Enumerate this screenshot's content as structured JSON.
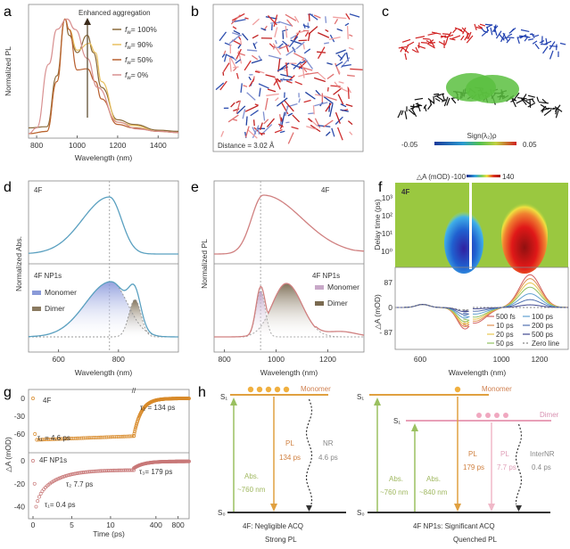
{
  "figure": {
    "panels": [
      "a",
      "b",
      "c",
      "d",
      "e",
      "f",
      "g",
      "h"
    ]
  },
  "chart_data": [
    {
      "id": "a",
      "type": "line",
      "title": "",
      "annotation": "Enhanced aggregation",
      "xlabel": "Wavelength (nm)",
      "ylabel": "Normalized PL",
      "xlim": [
        760,
        1500
      ],
      "xticks": [
        "800",
        "1000",
        "1200",
        "1400"
      ],
      "xtick_values": [
        800,
        1000,
        1200,
        1400
      ],
      "legend_placement": "top-right",
      "series": [
        {
          "name": "f_w = 100%",
          "label_prefix": "f",
          "label_sub": "w",
          "label_rest": "= 100%",
          "color": "#8a6a3a",
          "x": [
            760,
            850,
            900,
            940,
            960,
            1000,
            1050,
            1080,
            1120,
            1200,
            1280,
            1400,
            1500
          ],
          "y": [
            0.05,
            0.06,
            0.5,
            0.99,
            0.85,
            0.7,
            0.85,
            0.7,
            0.4,
            0.12,
            0.08,
            0.03,
            0.02
          ]
        },
        {
          "name": "f_w = 90%",
          "label_prefix": "f",
          "label_sub": "w",
          "label_rest": "= 90%",
          "color": "#e8c060",
          "x": [
            760,
            850,
            900,
            940,
            960,
            1000,
            1060,
            1090,
            1120,
            1200,
            1280,
            1400,
            1500
          ],
          "y": [
            0.0,
            0.02,
            0.45,
            0.99,
            0.9,
            0.72,
            0.78,
            0.7,
            0.45,
            0.1,
            0.07,
            0.02,
            0.01
          ]
        },
        {
          "name": "f_w = 50%",
          "label_prefix": "f",
          "label_sub": "w",
          "label_rest": "= 50%",
          "color": "#b86030",
          "x": [
            760,
            850,
            900,
            940,
            960,
            1000,
            1050,
            1090,
            1120,
            1200,
            1280,
            1400,
            1500
          ],
          "y": [
            0.0,
            0.02,
            0.45,
            0.99,
            0.9,
            0.55,
            0.56,
            0.45,
            0.3,
            0.08,
            0.05,
            0.02,
            0.01
          ]
        },
        {
          "name": "f_w = 0%",
          "label_prefix": "f",
          "label_sub": "w",
          "label_rest": "= 0%",
          "color": "#d89090",
          "x": [
            760,
            800,
            860,
            900,
            950,
            990,
            1050,
            1100,
            1200,
            1300,
            1400,
            1500
          ],
          "y": [
            0.0,
            0.05,
            0.6,
            0.9,
            0.99,
            0.9,
            0.65,
            0.4,
            0.1,
            0.04,
            0.02,
            0.01
          ]
        }
      ]
    },
    {
      "id": "d",
      "type": "line",
      "xlabel": "Wavelength (nm)",
      "ylabel": "Normalized Abs.",
      "xlim": [
        500,
        1000
      ],
      "xticks": [
        "600",
        "800"
      ],
      "xtick_values": [
        600,
        800
      ],
      "marker_line_x": 770,
      "top": {
        "label": "4F",
        "color": "#5aa0c0",
        "peak_x": 770
      },
      "bottom": {
        "label": "4F NP1s",
        "legend": [
          {
            "name": "Monomer",
            "color": "#8a9ad8"
          },
          {
            "name": "Dimer",
            "color": "#8a7a60"
          }
        ],
        "monomer_peak_x": 775,
        "dimer_peak_x": 855,
        "total_peak_x": 850
      }
    },
    {
      "id": "e",
      "type": "line",
      "xlabel": "Wavelength (nm)",
      "ylabel": "Normalized PL",
      "xlim": [
        760,
        1340
      ],
      "xticks": [
        "800",
        "1000",
        "1200"
      ],
      "xtick_values": [
        800,
        1000,
        1200
      ],
      "marker_line_x": 940,
      "top": {
        "label": "4F",
        "color": "#d08080",
        "peak_x": 950
      },
      "bottom": {
        "label": "4F NP1s",
        "legend": [
          {
            "name": "Monomer",
            "color": "#c8a8c8"
          },
          {
            "name": "Dimer",
            "color": "#7a6a50"
          }
        ],
        "monomer_peak_x": 940,
        "dimer_peak_x": 1040
      }
    },
    {
      "id": "f",
      "type": "heatmap",
      "colorbar_label": "△A (mOD)",
      "colorbar_min": "-100",
      "colorbar_max": "140",
      "label": "4F",
      "ylabel_top": "Delay time (ps)",
      "yticks_top": [
        "10³",
        "10²",
        "10¹",
        "10⁰"
      ],
      "xlabel": "Wavelength (nm)",
      "ylabel_bottom": "△A (mOD)",
      "yticks_bottom": [
        "87",
        "0",
        "- 87"
      ],
      "xticks": [
        "600",
        "1000",
        "1200"
      ],
      "bottom_series": [
        {
          "name": "500 fs",
          "color": "#d06060",
          "peak": 1.0
        },
        {
          "name": "10 ps",
          "color": "#e09050",
          "peak": 0.88
        },
        {
          "name": "20 ps",
          "color": "#e8c850",
          "peak": 0.75
        },
        {
          "name": "50 ps",
          "color": "#90c060",
          "peak": 0.62
        },
        {
          "name": "100 ps",
          "color": "#60a0d0",
          "peak": 0.42
        },
        {
          "name": "200 ps",
          "color": "#5070b0",
          "peak": 0.24
        },
        {
          "name": "500 ps",
          "color": "#404890",
          "peak": 0.08
        },
        {
          "name": "Zero line",
          "color": "#888888",
          "peak": 0.0
        }
      ]
    },
    {
      "id": "g",
      "type": "scatter",
      "xlabel": "Time (ps)",
      "ylabel": "△A (mOD)",
      "xticks": [
        "0",
        "5",
        "10",
        "400",
        "800"
      ],
      "top": {
        "label": "4F",
        "color": "#d88a2a",
        "yticks": [
          "0",
          "-30",
          "-60"
        ],
        "annotations": [
          "τ₁ = 4.6 ps",
          "τ₂ = 134 ps"
        ]
      },
      "bottom": {
        "label": "4F NP1s",
        "color": "#c87878",
        "yticks": [
          "0",
          "-20",
          "-40"
        ],
        "annotations": [
          "τ₁= 0.4 ps",
          "τ₂ 7.7 ps",
          "τ₃= 179 ps"
        ]
      }
    }
  ],
  "panel_b": {
    "caption": "Distance = 3.02 Å"
  },
  "panel_c": {
    "colorbar_label": "Sign(λ₂)ρ",
    "min": "-0.05",
    "max": "0.05"
  },
  "panel_h": {
    "left": {
      "s1": "S₁",
      "s0": "S₀",
      "state": "Monomer",
      "abs_label": "Abs.",
      "abs_value": "~760 nm",
      "pl_label": "PL",
      "pl_value": "134 ps",
      "nr_label": "NR",
      "nr_value": "4.6 ps",
      "caption1": "4F: Negligible ACQ",
      "caption2": "Strong PL"
    },
    "right": {
      "s1": "S₁",
      "s1b": "S₁",
      "s0": "S₀",
      "state1": "Monomer",
      "state2": "Dimer",
      "abs1_label": "Abs.",
      "abs1_value": "~760 nm",
      "abs2_label": "Abs.",
      "abs2_value": "~840 nm",
      "pl1_label": "PL",
      "pl1_value": "179 ps",
      "pl2_label": "PL",
      "pl2_value": "7.7 ps",
      "nr_label": "InterNR",
      "nr_value": "0.4 ps",
      "caption1": "4F NP1s: Significant ACQ",
      "caption2": "Quenched PL"
    }
  }
}
